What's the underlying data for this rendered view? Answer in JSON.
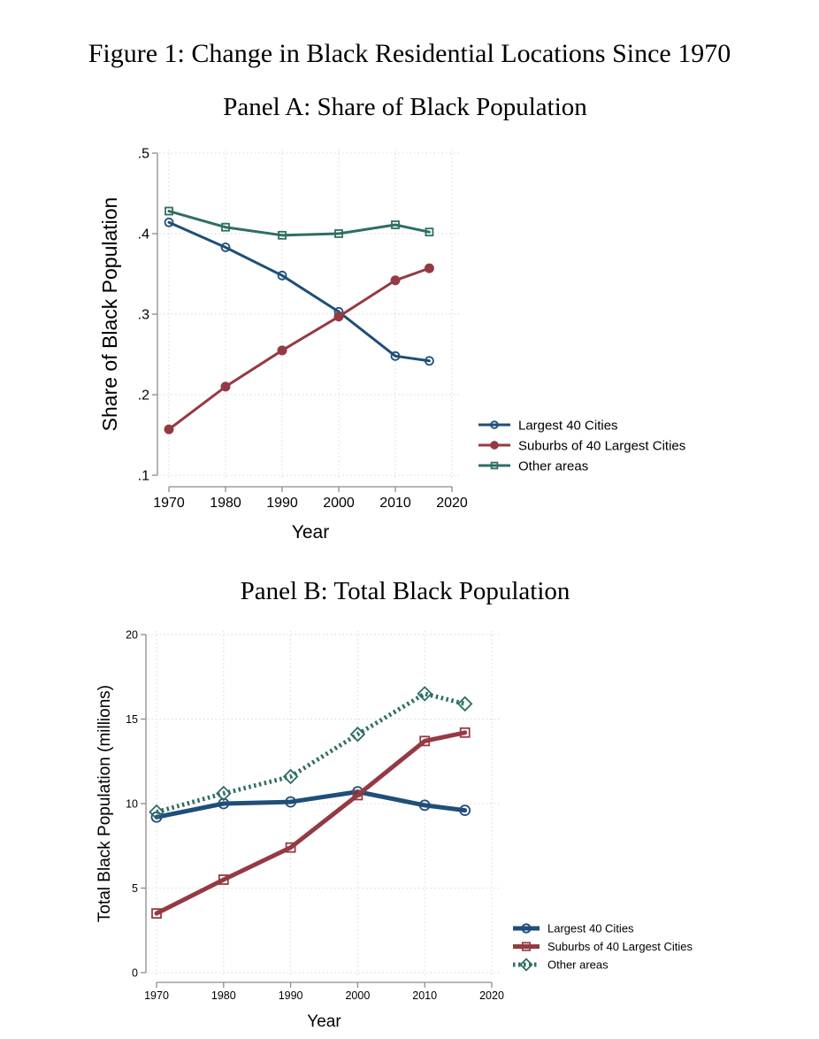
{
  "figure_title": "Figure 1: Change in Black Residential Locations Since 1970",
  "colors": {
    "largest": "#1f4e79",
    "suburbs": "#943a43",
    "other": "#2e6e64",
    "axis": "#8c8c8c",
    "grid": "#d9d9d9"
  },
  "chart_data": [
    {
      "panel": "A",
      "type": "line",
      "title": "Panel A: Share of Black Population",
      "xlabel": "Year",
      "ylabel": "Share of Black Population",
      "xlim": [
        1970,
        2020
      ],
      "ylim": [
        0.1,
        0.5
      ],
      "x_ticks": [
        1970,
        1980,
        1990,
        2000,
        2010,
        2020
      ],
      "x_tick_labels": [
        "1970",
        "1980",
        "1990",
        "2000",
        "2010",
        "2020"
      ],
      "y_ticks": [
        0.1,
        0.2,
        0.3,
        0.4,
        0.5
      ],
      "y_tick_labels": [
        ".1",
        ".2",
        ".3",
        ".4",
        ".5"
      ],
      "grid": true,
      "legend_position": "right",
      "x": [
        1970,
        1980,
        1990,
        2000,
        2010,
        2016
      ],
      "series": [
        {
          "key": "largest",
          "name": "Largest 40 Cities",
          "marker": "hollow-circle",
          "values": [
            0.414,
            0.383,
            0.348,
            0.303,
            0.248,
            0.242
          ]
        },
        {
          "key": "suburbs",
          "name": "Suburbs of 40 Largest Cities",
          "marker": "filled-circle",
          "values": [
            0.157,
            0.21,
            0.255,
            0.297,
            0.342,
            0.357
          ]
        },
        {
          "key": "other",
          "name": "Other areas",
          "marker": "hollow-square",
          "values": [
            0.428,
            0.408,
            0.398,
            0.4,
            0.411,
            0.402
          ]
        }
      ]
    },
    {
      "panel": "B",
      "type": "line",
      "title": "Panel B: Total Black Population",
      "xlabel": "Year",
      "ylabel": "Total Black Population (millions)",
      "xlim": [
        1970,
        2020
      ],
      "ylim": [
        0,
        20
      ],
      "x_ticks": [
        1970,
        1980,
        1990,
        2000,
        2010,
        2020
      ],
      "x_tick_labels": [
        "1970",
        "1980",
        "1990",
        "2000",
        "2010",
        "2020"
      ],
      "y_ticks": [
        0,
        5,
        10,
        15,
        20
      ],
      "y_tick_labels": [
        "0",
        "5",
        "10",
        "15",
        "20"
      ],
      "grid": true,
      "legend_position": "bottom-right",
      "x": [
        1970,
        1980,
        1990,
        2000,
        2010,
        2016
      ],
      "series": [
        {
          "key": "largest",
          "name": "Largest 40 Cities",
          "marker": "hollow-circle",
          "line": "solid",
          "values": [
            9.2,
            10.0,
            10.1,
            10.7,
            9.9,
            9.6
          ]
        },
        {
          "key": "suburbs",
          "name": "Suburbs of 40 Largest Cities",
          "marker": "hollow-square",
          "line": "solid",
          "values": [
            3.5,
            5.5,
            7.4,
            10.5,
            13.7,
            14.2
          ]
        },
        {
          "key": "other",
          "name": "Other areas",
          "marker": "hollow-diamond",
          "line": "dotted",
          "values": [
            9.5,
            10.6,
            11.6,
            14.1,
            16.5,
            15.9
          ]
        }
      ]
    }
  ]
}
